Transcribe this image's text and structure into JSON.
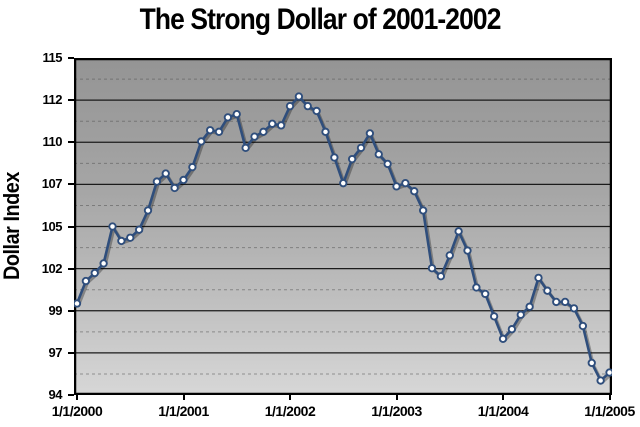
{
  "title": "The Strong Dollar of 2001-2002",
  "y_axis_title": "Dollar Index",
  "chart_data": {
    "type": "line",
    "title": "The Strong Dollar of 2001-2002",
    "xlabel": "",
    "ylabel": "Dollar Index",
    "ylim": [
      94,
      115
    ],
    "grid": "major-solid-and-minor-dashed",
    "legend_position": "none",
    "x_tick_labels": [
      "1/1/2000",
      "1/1/2001",
      "1/1/2002",
      "1/1/2003",
      "1/1/2004",
      "1/1/2005"
    ],
    "y_tick_labels": [
      "115",
      "112",
      "110",
      "107",
      "105",
      "102",
      "99",
      "97",
      "94"
    ],
    "y_tick_values": [
      115,
      112.375,
      109.75,
      107.125,
      104.5,
      101.875,
      99.25,
      96.625,
      94
    ],
    "line_color": "#2f4e7c",
    "marker_style": "circle-white-fill-navy-ring",
    "plot_bg_gradient_top": "#949494",
    "plot_bg_gradient_bottom": "#d7d7d7",
    "x": [
      "1/2000",
      "2/2000",
      "3/2000",
      "4/2000",
      "5/2000",
      "6/2000",
      "7/2000",
      "8/2000",
      "9/2000",
      "10/2000",
      "11/2000",
      "12/2000",
      "1/2001",
      "2/2001",
      "3/2001",
      "4/2001",
      "5/2001",
      "6/2001",
      "7/2001",
      "8/2001",
      "9/2001",
      "10/2001",
      "11/2001",
      "12/2001",
      "1/2002",
      "2/2002",
      "3/2002",
      "4/2002",
      "5/2002",
      "6/2002",
      "7/2002",
      "8/2002",
      "9/2002",
      "10/2002",
      "11/2002",
      "12/2002",
      "1/2003",
      "2/2003",
      "3/2003",
      "4/2003",
      "5/2003",
      "6/2003",
      "7/2003",
      "8/2003",
      "9/2003",
      "10/2003",
      "11/2003",
      "12/2003",
      "1/2004",
      "2/2004",
      "3/2004",
      "4/2004",
      "5/2004",
      "6/2004",
      "7/2004",
      "8/2004",
      "9/2004",
      "10/2004",
      "11/2004",
      "12/2004",
      "1/2005"
    ],
    "values": [
      99.7,
      101.1,
      101.6,
      102.2,
      104.5,
      103.6,
      103.8,
      104.3,
      105.5,
      107.3,
      107.8,
      106.9,
      107.4,
      108.2,
      109.8,
      110.5,
      110.4,
      111.3,
      111.5,
      109.4,
      110.1,
      110.4,
      110.9,
      110.8,
      112.0,
      112.6,
      112.0,
      111.7,
      110.4,
      108.8,
      107.2,
      108.7,
      109.4,
      110.3,
      109.0,
      108.4,
      107.0,
      107.2,
      106.7,
      105.5,
      101.9,
      101.4,
      102.7,
      104.2,
      103.0,
      100.7,
      100.3,
      98.9,
      97.5,
      98.1,
      99.0,
      99.5,
      101.3,
      100.5,
      99.8,
      99.8,
      99.4,
      98.3,
      96.0,
      94.9,
      95.4
    ]
  }
}
